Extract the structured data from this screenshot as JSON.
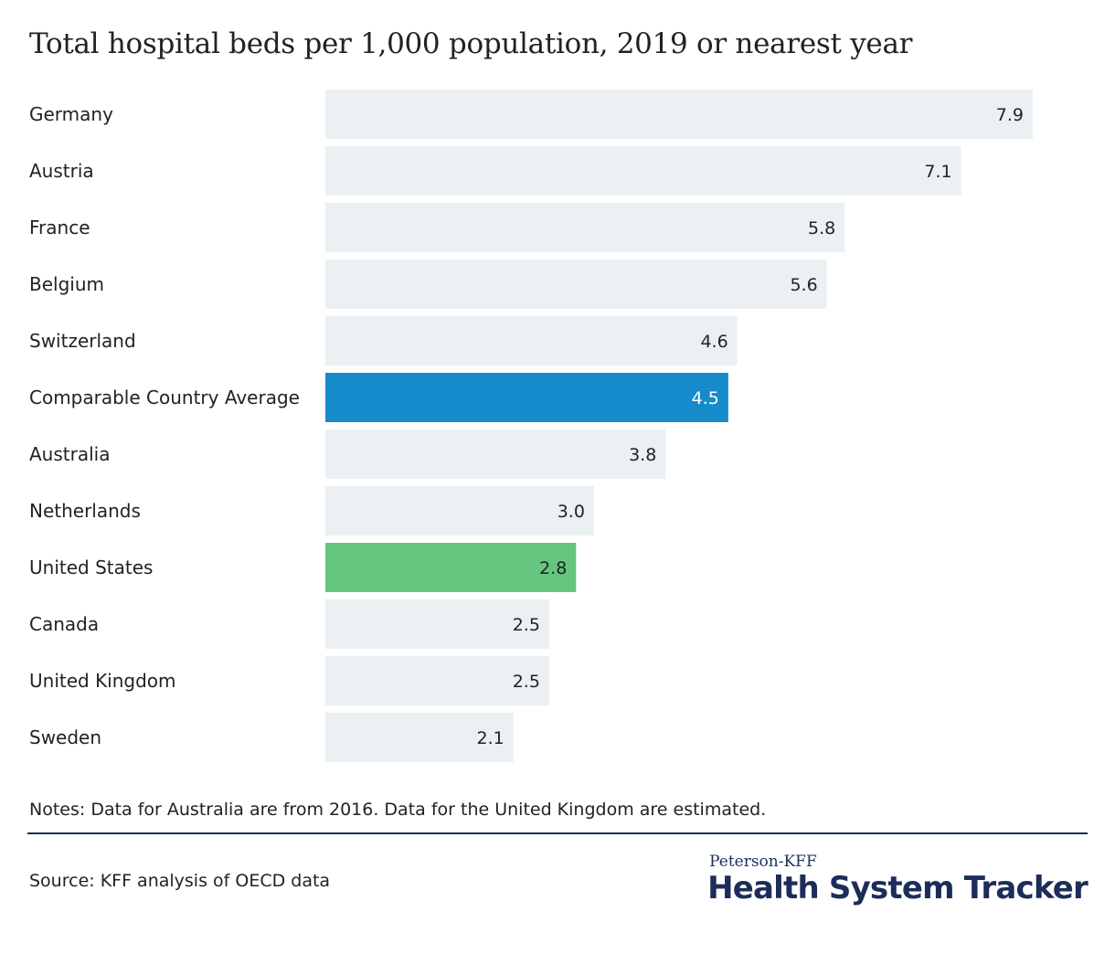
{
  "title": "Total hospital beds per 1,000 population, 2019 or nearest year",
  "chart_data": {
    "type": "bar",
    "orientation": "horizontal",
    "title": "Total hospital beds per 1,000 population, 2019 or nearest year",
    "xlabel": "",
    "ylabel": "",
    "xlim": [
      0,
      7.9
    ],
    "grid": false,
    "categories": [
      "Germany",
      "Austria",
      "France",
      "Belgium",
      "Switzerland",
      "Comparable Country Average",
      "Australia",
      "Netherlands",
      "United States",
      "Canada",
      "United Kingdom",
      "Sweden"
    ],
    "values": [
      7.9,
      7.1,
      5.8,
      5.6,
      4.6,
      4.5,
      3.8,
      3.0,
      2.8,
      2.5,
      2.5,
      2.1
    ],
    "value_labels": [
      "7.9",
      "7.1",
      "5.8",
      "5.6",
      "4.6",
      "4.5",
      "3.8",
      "3.0",
      "2.8",
      "2.5",
      "2.5",
      "2.1"
    ],
    "colors": {
      "default": "#ebf0f3",
      "Comparable Country Average": "#168bcb",
      "United States": "#64c67f"
    }
  },
  "notes": "Notes: Data for Australia are from 2016. Data for the United Kingdom are estimated.",
  "source": "Source: KFF analysis of OECD data",
  "logo": {
    "top": "Peterson-KFF",
    "main": "Health System Tracker"
  }
}
